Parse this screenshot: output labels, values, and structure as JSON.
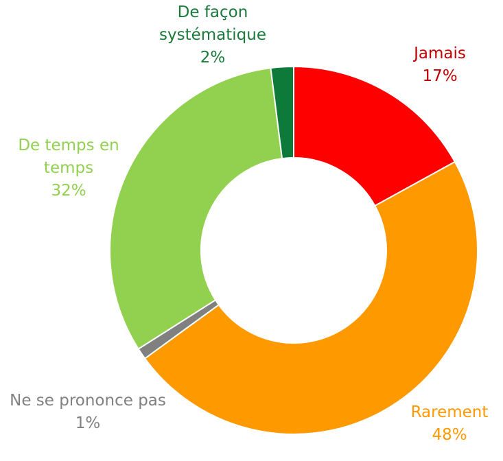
{
  "chart_data": {
    "type": "donut",
    "categories": [
      "Jamais",
      "Rarement",
      "Ne se prononce pas",
      "De temps en temps",
      "De façon systématique"
    ],
    "values": [
      17,
      48,
      1,
      32,
      2
    ],
    "value_labels": [
      "17%",
      "48%",
      "1%",
      "32%",
      "2%"
    ],
    "colors": [
      "#ff0000",
      "#ff9900",
      "#808080",
      "#92d050",
      "#0e7a3a"
    ],
    "label_colors": [
      "#c00000",
      "#ff9900",
      "#808080",
      "#92d050",
      "#1a7a3c"
    ]
  }
}
